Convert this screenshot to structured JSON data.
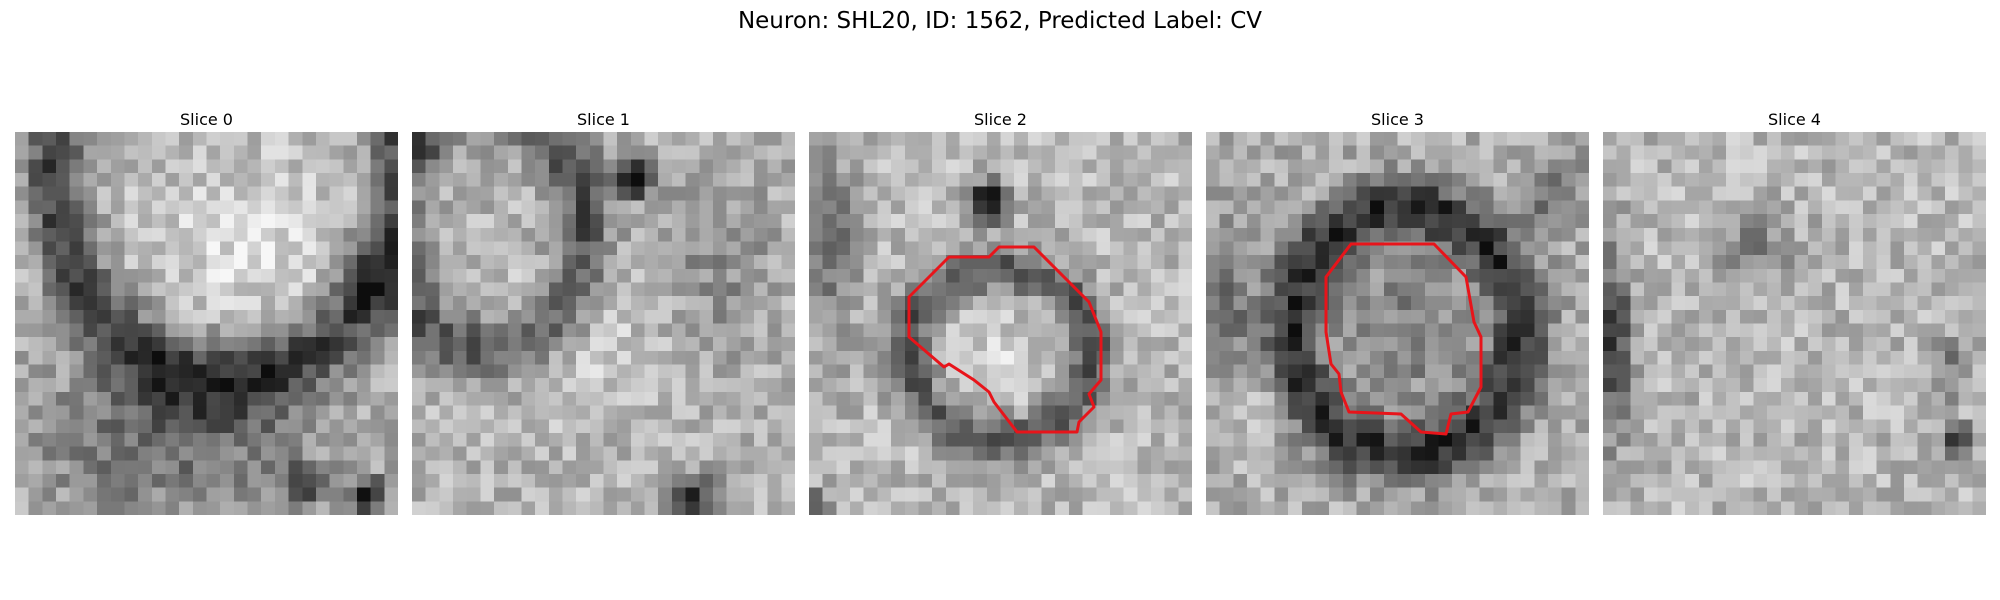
{
  "figure": {
    "title": "Neuron: SHL20, ID: 1562, Predicted Label: CV"
  },
  "colors": {
    "contour": "#e8141a",
    "background": "#ffffff"
  },
  "slices": [
    {
      "title": "Slice 0",
      "has_contour": false
    },
    {
      "title": "Slice 1",
      "has_contour": false
    },
    {
      "title": "Slice 2",
      "has_contour": true
    },
    {
      "title": "Slice 3",
      "has_contour": true
    },
    {
      "title": "Slice 4",
      "has_contour": false
    }
  ]
}
